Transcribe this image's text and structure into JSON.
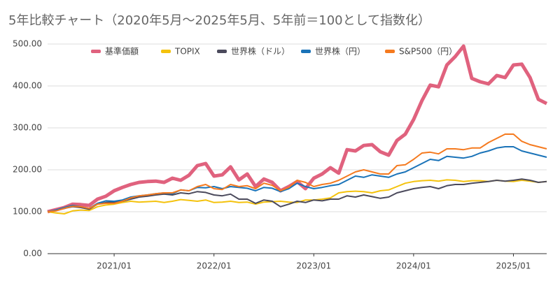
{
  "chart_data": {
    "type": "line",
    "title": "5年比較チャート（2020年5月〜2025年5月、5年前＝100として指数化）",
    "x": [
      "2020/05",
      "2020/06",
      "2020/07",
      "2020/08",
      "2020/09",
      "2020/10",
      "2020/11",
      "2020/12",
      "2021/01",
      "2021/02",
      "2021/03",
      "2021/04",
      "2021/05",
      "2021/06",
      "2021/07",
      "2021/08",
      "2021/09",
      "2021/10",
      "2021/11",
      "2021/12",
      "2022/01",
      "2022/02",
      "2022/03",
      "2022/04",
      "2022/05",
      "2022/06",
      "2022/07",
      "2022/08",
      "2022/09",
      "2022/10",
      "2022/11",
      "2022/12",
      "2023/01",
      "2023/02",
      "2023/03",
      "2023/04",
      "2023/05",
      "2023/06",
      "2023/07",
      "2023/08",
      "2023/09",
      "2023/10",
      "2023/11",
      "2023/12",
      "2024/01",
      "2024/02",
      "2024/03",
      "2024/04",
      "2024/05",
      "2024/06",
      "2024/07",
      "2024/08",
      "2024/09",
      "2024/10",
      "2024/11",
      "2024/12",
      "2025/01",
      "2025/02",
      "2025/03",
      "2025/04",
      "2025/05"
    ],
    "xlim": [
      "2020/05",
      "2025/05"
    ],
    "xticks": [
      "2021/01",
      "2022/01",
      "2023/01",
      "2024/01",
      "2025/01"
    ],
    "ylim": [
      0,
      500
    ],
    "yticks": [
      {
        "value": 0,
        "label": "0.00"
      },
      {
        "value": 100,
        "label": "100.00"
      },
      {
        "value": 200,
        "label": "200.00"
      },
      {
        "value": 300,
        "label": "300.00"
      },
      {
        "value": 400,
        "label": "400.00"
      },
      {
        "value": 500,
        "label": "500.00"
      }
    ],
    "grid": true,
    "legend": "top",
    "series": [
      {
        "name": "基準価額",
        "color": "#e0627e",
        "values": [
          100,
          105,
          110,
          118,
          117,
          115,
          130,
          137,
          150,
          158,
          165,
          170,
          172,
          173,
          170,
          180,
          175,
          187,
          210,
          215,
          185,
          188,
          207,
          176,
          190,
          160,
          178,
          170,
          150,
          160,
          172,
          155,
          180,
          190,
          205,
          192,
          248,
          245,
          258,
          260,
          243,
          235,
          270,
          285,
          320,
          365,
          402,
          398,
          450,
          470,
          495,
          418,
          410,
          405,
          425,
          420,
          450,
          452,
          420,
          368,
          358
        ]
      },
      {
        "name": "TOPIX",
        "color": "#f4c20d",
        "values": [
          100,
          97,
          95,
          102,
          104,
          103,
          112,
          116,
          118,
          122,
          125,
          123,
          124,
          125,
          122,
          125,
          129,
          127,
          125,
          128,
          122,
          123,
          125,
          122,
          123,
          118,
          123,
          124,
          125,
          123,
          122,
          128,
          128,
          130,
          133,
          145,
          148,
          149,
          148,
          145,
          150,
          152,
          160,
          168,
          172,
          174,
          175,
          173,
          176,
          175,
          172,
          174,
          174,
          172,
          175,
          173,
          172,
          175,
          173,
          170,
          172
        ]
      },
      {
        "name": "世界株（ドル）",
        "color": "#4b4a5c",
        "values": [
          100,
          103,
          108,
          112,
          110,
          106,
          118,
          122,
          123,
          125,
          130,
          135,
          137,
          140,
          142,
          140,
          145,
          143,
          148,
          146,
          140,
          138,
          142,
          130,
          130,
          120,
          128,
          125,
          112,
          118,
          125,
          122,
          128,
          126,
          130,
          130,
          138,
          135,
          140,
          136,
          132,
          135,
          145,
          150,
          155,
          158,
          160,
          155,
          162,
          165,
          165,
          168,
          170,
          172,
          175,
          173,
          175,
          178,
          175,
          170,
          172
        ]
      },
      {
        "name": "世界株（円）",
        "color": "#1a73b8",
        "values": [
          100,
          104,
          110,
          115,
          112,
          108,
          120,
          126,
          125,
          128,
          135,
          138,
          140,
          143,
          145,
          143,
          152,
          150,
          158,
          157,
          160,
          155,
          160,
          158,
          156,
          150,
          158,
          156,
          148,
          155,
          168,
          160,
          155,
          158,
          162,
          165,
          175,
          185,
          182,
          188,
          185,
          182,
          190,
          195,
          205,
          215,
          225,
          222,
          232,
          230,
          228,
          232,
          240,
          245,
          252,
          255,
          255,
          245,
          240,
          235,
          230
        ]
      },
      {
        "name": "S&P500（円）",
        "color": "#f57a1f",
        "values": [
          100,
          102,
          108,
          113,
          112,
          108,
          118,
          120,
          120,
          125,
          133,
          138,
          140,
          143,
          145,
          145,
          152,
          150,
          160,
          165,
          155,
          153,
          165,
          160,
          162,
          155,
          168,
          163,
          150,
          158,
          175,
          170,
          160,
          165,
          168,
          175,
          185,
          195,
          200,
          195,
          190,
          190,
          210,
          212,
          225,
          240,
          242,
          238,
          250,
          250,
          248,
          252,
          252,
          265,
          275,
          285,
          285,
          268,
          260,
          255,
          250
        ]
      }
    ]
  }
}
